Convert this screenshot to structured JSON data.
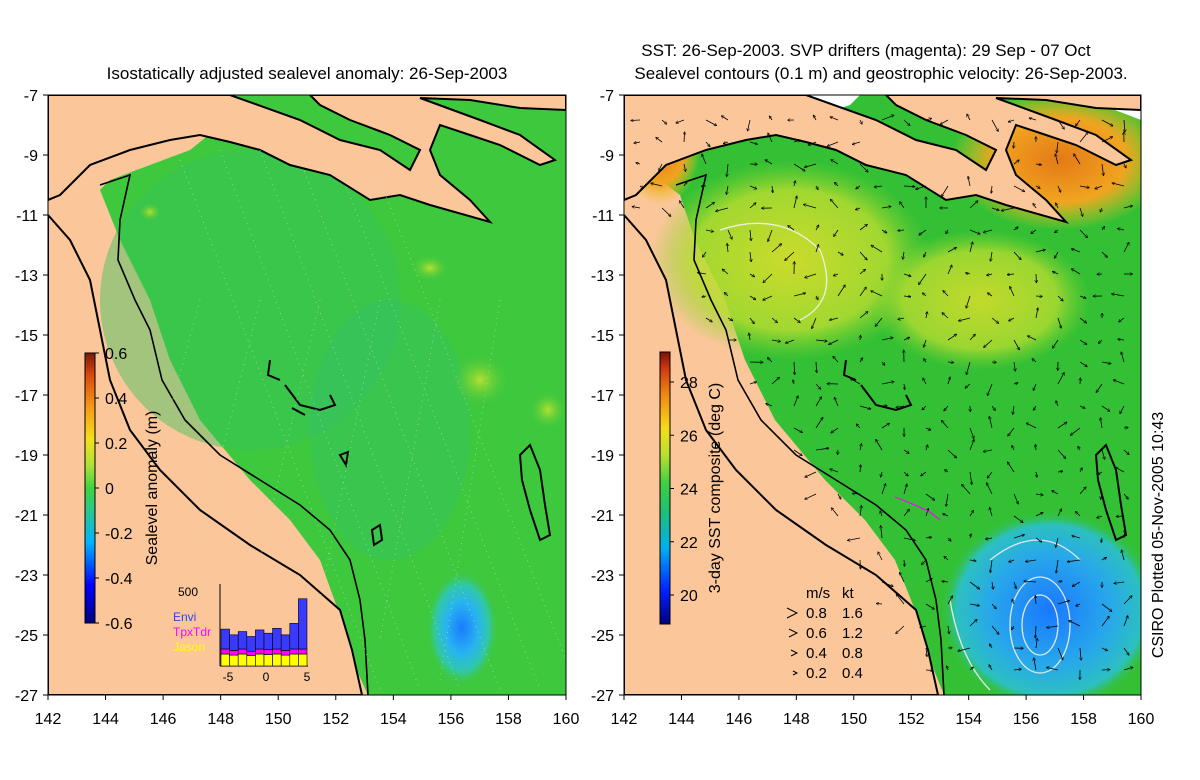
{
  "left_map": {
    "title": "Isostatically adjusted sealevel anomaly: 26-Sep-2003",
    "lon_ticks": [
      "142",
      "144",
      "146",
      "148",
      "150",
      "152",
      "154",
      "156",
      "158",
      "160"
    ],
    "lat_ticks": [
      "-7",
      "-9",
      "-11",
      "-13",
      "-15",
      "-17",
      "-19",
      "-21",
      "-23",
      "-25",
      "-27"
    ],
    "colorbar": {
      "label": "Sealevel anomaly (m)",
      "ticks": [
        "0.6",
        "0.4",
        "0.2",
        "0",
        "-0.2",
        "-0.4",
        "-0.6"
      ],
      "range": [
        -0.6,
        0.6
      ]
    },
    "histogram": {
      "ymax_label": "500",
      "x_ticks": [
        "-5",
        "0",
        "5"
      ],
      "legend": [
        {
          "label": "Envi",
          "color": "#3a3aff"
        },
        {
          "label": "TpxTdr",
          "color": "#ff00ff"
        },
        {
          "label": "Jason",
          "color": "#ffff00"
        }
      ],
      "bars_fraction": [
        0.45,
        0.38,
        0.42,
        0.36,
        0.44,
        0.4,
        0.46,
        0.38,
        0.52,
        0.82
      ]
    }
  },
  "right_map": {
    "title_line1": "SST: 26-Sep-2003. SVP drifters (magenta): 29 Sep - 07 Oct",
    "title_line2": "Sealevel contours (0.1 m) and geostrophic velocity: 26-Sep-2003.",
    "lon_ticks": [
      "142",
      "144",
      "146",
      "148",
      "150",
      "152",
      "154",
      "156",
      "158",
      "160"
    ],
    "lat_ticks": [
      "-7",
      "-9",
      "-11",
      "-13",
      "-15",
      "-17",
      "-19",
      "-21",
      "-23",
      "-25",
      "-27"
    ],
    "colorbar": {
      "label": "3-day SST composite (deg C)",
      "ticks": [
        "28",
        "26",
        "24",
        "22",
        "20"
      ],
      "range": [
        19,
        29.5
      ]
    },
    "velocity_legend": {
      "header_ms": "m/s",
      "header_kt": "kt",
      "rows": [
        {
          "ms": "0.8",
          "kt": "1.6"
        },
        {
          "ms": "0.6",
          "kt": "1.2"
        },
        {
          "ms": "0.4",
          "kt": "0.8"
        },
        {
          "ms": "0.2",
          "kt": "0.4"
        }
      ]
    }
  },
  "credit": "CSIRO Plotted 05-Nov-2005 10:43",
  "colors": {
    "land": "#fbc79a",
    "sla_green": "#3ec83e",
    "sst_green": "#34c034",
    "sst_orange": "#e8921e",
    "sst_blue": "#2aa8e6"
  }
}
